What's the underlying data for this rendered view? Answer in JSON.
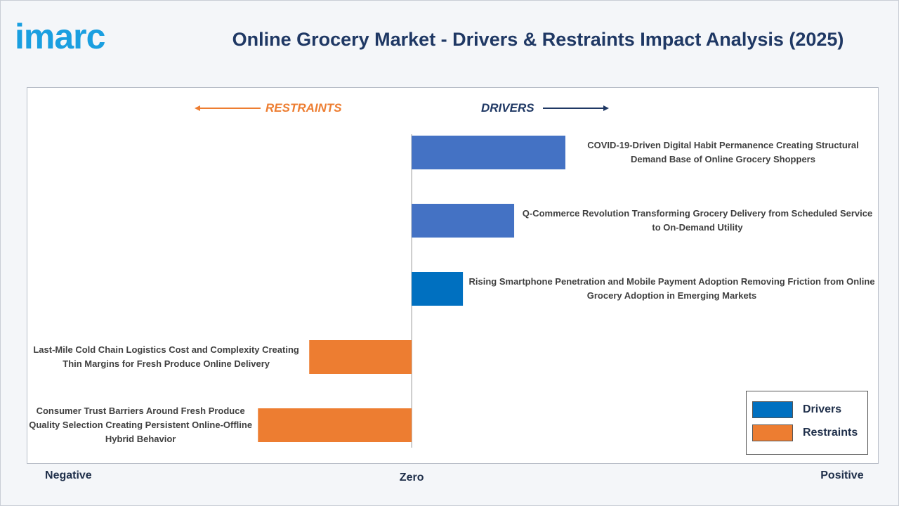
{
  "chart_data": {
    "type": "bar",
    "orientation": "horizontal",
    "logo": "imarc",
    "title": "Online Grocery Market - Drivers & Restraints Impact Analysis (2025)",
    "annotations": [
      "RESTRAINTS",
      "DRIVERS"
    ],
    "categories": [
      "COVID-19-Driven Digital Habit Permanence Creating Structural Demand Base of Online Grocery Shoppers",
      "Q-Commerce Revolution Transforming Grocery Delivery from Scheduled Service to On-Demand Utility",
      "Rising Smartphone Penetration and Mobile Payment Adoption Removing Friction from Online Grocery Adoption in Emerging Markets",
      "Last-Mile Cold Chain Logistics Cost and Complexity Creating Thin Margins for Fresh Produce Online Delivery",
      "Consumer Trust Barriers Around Fresh Produce Quality Selection Creating Persistent Online-Offline Hybrid Behavior"
    ],
    "series": [
      {
        "name": "Drivers",
        "color": "#0070c0",
        "values": [
          3,
          2,
          1,
          null,
          null
        ]
      },
      {
        "name": "Restraints",
        "color": "#ed7d31",
        "values": [
          null,
          null,
          null,
          -2,
          -3
        ]
      }
    ],
    "colors": [
      "#4472c4",
      "#4472c4",
      "#0070c0",
      "#ed7d31",
      "#ed7d31"
    ],
    "xlim": [
      -7.5,
      9.1
    ],
    "xticks": [
      {
        "value": -6.7,
        "label": "Negative"
      },
      {
        "value": 0,
        "label": "Zero"
      },
      {
        "value": 8.4,
        "label": "Positive"
      }
    ],
    "legend": "lower right"
  }
}
